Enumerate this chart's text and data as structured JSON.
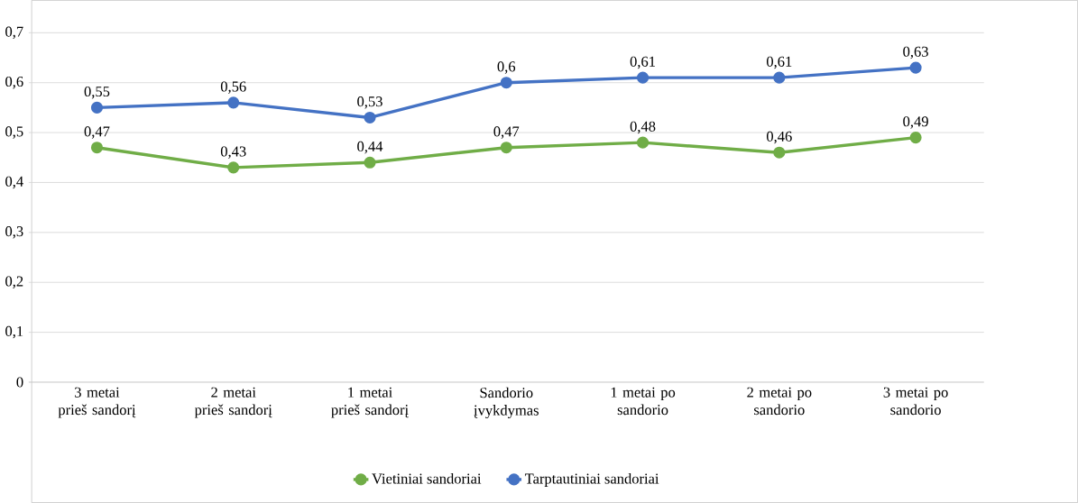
{
  "chart_data": {
    "type": "line",
    "categories": [
      "3 metai prieš sandorį",
      "2 metai prieš sandorį",
      "1 metai prieš sandorį",
      "Sandorio įvykdymas",
      "1 metai po sandorio",
      "2 metai po sandorio",
      "3 metai po sandorio"
    ],
    "series": [
      {
        "name": "Vietiniai sandoriai",
        "color": "#70ad47",
        "values": [
          0.47,
          0.43,
          0.44,
          0.47,
          0.48,
          0.46,
          0.49
        ],
        "value_labels": [
          "0,47",
          "0,43",
          "0,44",
          "0,47",
          "0,48",
          "0,46",
          "0,49"
        ]
      },
      {
        "name": "Tarptautiniai sandoriai",
        "color": "#4472c4",
        "values": [
          0.55,
          0.56,
          0.53,
          0.6,
          0.61,
          0.61,
          0.63
        ],
        "value_labels": [
          "0,55",
          "0,56",
          "0,53",
          "0,6",
          "0,61",
          "0,61",
          "0,63"
        ]
      }
    ],
    "ylim": [
      0,
      0.7
    ],
    "yticks": [
      0,
      {
        "value": 0.1,
        "label": "0,1"
      },
      {
        "value": 0.2,
        "label": "0,2"
      },
      {
        "value": 0.3,
        "label": "0,3"
      },
      {
        "value": 0.4,
        "label": "0,4"
      },
      {
        "value": 0.5,
        "label": "0,5"
      },
      {
        "value": 0.6,
        "label": "0,6"
      },
      {
        "value": 0.7,
        "label": "0,7"
      }
    ],
    "grid": "y",
    "legend": "bottom",
    "marker": "circle",
    "line_style": "solid"
  }
}
